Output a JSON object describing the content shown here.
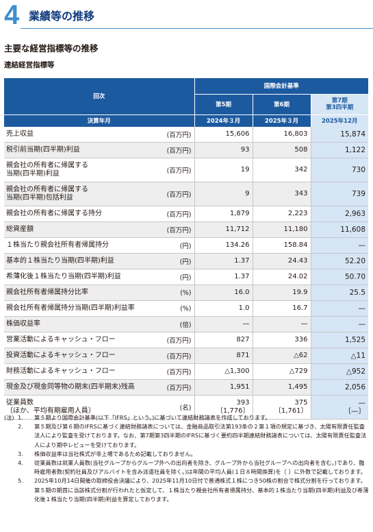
{
  "section": {
    "number": "4",
    "title": "業績等の推移"
  },
  "subtitle": "主要な経営指標等の推移",
  "subsubtitle": "連結経営指標等",
  "table": {
    "header_kaiji": "回次",
    "header_standard": "国際会計基準",
    "periods": [
      "第5期",
      "第6期",
      "第7期\n第3四半期"
    ],
    "header_fiscal": "決算年月",
    "dates": [
      "2024年３月",
      "2025年３月",
      "2025年12月"
    ],
    "rows": [
      {
        "label": "売上収益",
        "unit": "(百万円)",
        "v": [
          "15,606",
          "16,803",
          "15,874"
        ]
      },
      {
        "label": "税引前当期(四半期)利益",
        "unit": "(百万円)",
        "v": [
          "93",
          "508",
          "1,122"
        ]
      },
      {
        "label": "親会社の所有者に帰属する\n当期(四半期)利益",
        "unit": "(百万円)",
        "v": [
          "19",
          "342",
          "730"
        ]
      },
      {
        "label": "親会社の所有者に帰属する\n当期(四半期)包括利益",
        "unit": "(百万円)",
        "v": [
          "9",
          "343",
          "739"
        ]
      },
      {
        "label": "親会社の所有者に帰属する持分",
        "unit": "(百万円)",
        "v": [
          "1,879",
          "2,223",
          "2,963"
        ]
      },
      {
        "label": "総資産額",
        "unit": "(百万円)",
        "v": [
          "11,712",
          "11,180",
          "11,608"
        ]
      },
      {
        "label": "１株当たり親会社所有者帰属持分",
        "unit": "(円)",
        "v": [
          "134.26",
          "158.84",
          "—"
        ]
      },
      {
        "label": "基本的１株当たり当期(四半期)利益",
        "unit": "(円)",
        "v": [
          "1.37",
          "24.43",
          "52.20"
        ]
      },
      {
        "label": "希薄化後１株当たり当期(四半期)利益",
        "unit": "(円)",
        "v": [
          "1.37",
          "24.02",
          "50.70"
        ]
      },
      {
        "label": "親会社所有者帰属持分比率",
        "unit": "(%)",
        "v": [
          "16.0",
          "19.9",
          "25.5"
        ]
      },
      {
        "label": "親会社所有者帰属持分当期(四半期)利益率",
        "unit": "(%)",
        "v": [
          "1.0",
          "16.7",
          "—"
        ]
      },
      {
        "label": "株価収益率",
        "unit": "(倍)",
        "v": [
          "—",
          "—",
          "—"
        ]
      },
      {
        "label": "営業活動によるキャッシュ・フロー",
        "unit": "(百万円)",
        "v": [
          "827",
          "336",
          "1,525"
        ]
      },
      {
        "label": "投資活動によるキャッシュ・フロー",
        "unit": "(百万円)",
        "v": [
          "871",
          "△62",
          "△11"
        ]
      },
      {
        "label": "財務活動によるキャッシュ・フロー",
        "unit": "(百万円)",
        "v": [
          "△1,300",
          "△729",
          "△952"
        ]
      },
      {
        "label": "現金及び現金同等物の期末(四半期末)残高",
        "unit": "(百万円)",
        "v": [
          "1,951",
          "1,495",
          "2,056"
        ]
      },
      {
        "label": "従業員数\n〔ほか、平均有期雇用人員〕",
        "unit": "(名)",
        "v": [
          "393\n〔1,776〕",
          "375\n〔1,761〕",
          "—\n〔—〕"
        ]
      }
    ]
  },
  "notes": [
    {
      "prefix": "(注)",
      "num": "1.",
      "text": "第５期より国際会計基準(以下「IFRS」という。)に基づいて連結財務諸表を作成しております。"
    },
    {
      "prefix": "",
      "num": "2.",
      "text": "第５期及び第６期のIFRSに基づく連結財務諸表については、金融商品取引法第193条の２第１項の規定に基づき、太陽有限責任監査法人により監査を受けております。なお、第7期第3四半期のIFRSに基づく要約四半期連結財務諸表については、太陽有限責任監査法人により期中レビューを受けております。"
    },
    {
      "prefix": "",
      "num": "3.",
      "text": "株価収益率は当社株式が非上場であるため記載しておりません。"
    },
    {
      "prefix": "",
      "num": "4.",
      "text": "従業員数は就業人員数(当社グループからグループ外への出向者を除き、グループ外から当社グループへの出向者を含む。)であり、臨時雇用者数(契約社員及びアルバイトを含み派遣社員を除く。)は年間の平均人員(１日８時間換算)を〔 〕に外数で記載しております。"
    },
    {
      "prefix": "",
      "num": "5.",
      "text": "2025年10月14日開催の取締役会決議により、2025年11月10日付で普通株式１株につき50株の割合で株式分割を行っております。第５期の期首に当該株式分割が行われたと仮定して、１株当たり親会社所有者帰属持分、基本的１株当たり当期(四半期)利益及び希薄化後１株当たり当期(四半期)利益を算定しております。"
    }
  ]
}
